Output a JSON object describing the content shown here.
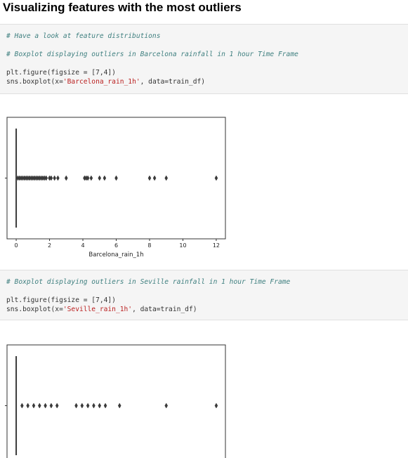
{
  "heading": "Visualizing features with the most outliers",
  "cells": [
    {
      "comment1": "# Have a look at feature distributions",
      "comment2": "# Boxplot displaying outliers in Barcelona rainfall in 1 hour Time Frame",
      "line1": "plt.figure(figsize = [7,4])",
      "line2_pre": "sns.boxplot(x=",
      "line2_str": "'Barcelona_rain_1h'",
      "line2_post": ", data=train_df)"
    },
    {
      "comment1": "# Boxplot displaying outliers in Seville rainfall in 1 hour Time Frame",
      "line1": "plt.figure(figsize = [7,4])",
      "line2_pre": "sns.boxplot(x=",
      "line2_str": "'Seville_rain_1h'",
      "line2_post": ", data=train_df)"
    }
  ],
  "chart_data": [
    {
      "type": "box",
      "xlabel": "Barcelona_rain_1h",
      "xlim": [
        -0.55,
        12.55
      ],
      "xticks": [
        0,
        2,
        4,
        6,
        8,
        10,
        12
      ],
      "box": {
        "q1": 0,
        "median": 0,
        "q3": 0,
        "whisker_low": 0,
        "whisker_high": 0
      },
      "outliers": [
        0.1,
        0.2,
        0.3,
        0.4,
        0.5,
        0.6,
        0.7,
        0.8,
        0.9,
        1.0,
        1.1,
        1.2,
        1.3,
        1.4,
        1.5,
        1.6,
        1.7,
        1.8,
        2.0,
        2.1,
        2.3,
        2.5,
        3.0,
        4.1,
        4.2,
        4.3,
        4.5,
        5.0,
        5.3,
        6.0,
        8.0,
        8.3,
        9.0,
        12.0
      ]
    },
    {
      "type": "box",
      "xlabel": "",
      "xlim": [
        -0.55,
        12.55
      ],
      "xticks": [],
      "box": {
        "q1": 0,
        "median": 0,
        "q3": 0,
        "whisker_low": 0,
        "whisker_high": 0
      },
      "outliers": [
        0.35,
        0.7,
        1.05,
        1.4,
        1.75,
        2.1,
        2.45,
        3.6,
        3.95,
        4.3,
        4.65,
        5.0,
        5.35,
        6.2,
        9.0,
        12.0
      ]
    }
  ]
}
